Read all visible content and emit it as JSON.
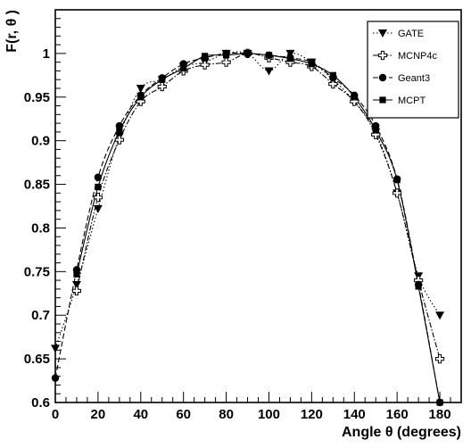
{
  "chart_data": {
    "type": "scatter",
    "xlabel": "Angle θ  (degrees)",
    "ylabel": "F(r, θ )",
    "xlim": [
      0,
      190
    ],
    "ylim": [
      0.6,
      1.05
    ],
    "x_ticks": [
      "0",
      "20",
      "40",
      "60",
      "80",
      "100",
      "120",
      "140",
      "160",
      "180"
    ],
    "y_ticks": [
      "0.6",
      "0.65",
      "0.7",
      "0.75",
      "0.8",
      "0.85",
      "0.9",
      "0.95",
      "1"
    ],
    "grid": false,
    "legend": "top-right",
    "series": [
      {
        "name": "GATE",
        "marker": "triangle-down",
        "line": "dotted",
        "points": [
          [
            0,
            0.662
          ],
          [
            10,
            0.735
          ],
          [
            20,
            0.822
          ],
          [
            30,
            0.905
          ],
          [
            40,
            0.96
          ],
          [
            50,
            0.97
          ],
          [
            60,
            0.985
          ],
          [
            70,
            0.99
          ],
          [
            80,
            1.0
          ],
          [
            90,
            1.0
          ],
          [
            100,
            0.98
          ],
          [
            110,
            1.0
          ],
          [
            120,
            0.99
          ],
          [
            130,
            0.97
          ],
          [
            140,
            0.945
          ],
          [
            150,
            0.91
          ],
          [
            160,
            0.84
          ],
          [
            170,
            0.745
          ],
          [
            180,
            0.7
          ]
        ]
      },
      {
        "name": "MCNP4c",
        "marker": "open-cross",
        "line": "dash-dot",
        "points": [
          [
            10,
            0.728
          ],
          [
            20,
            0.835
          ],
          [
            30,
            0.901
          ],
          [
            40,
            0.945
          ],
          [
            50,
            0.962
          ],
          [
            60,
            0.98
          ],
          [
            70,
            0.987
          ],
          [
            80,
            0.99
          ],
          [
            90,
            1.0
          ],
          [
            100,
            0.995
          ],
          [
            110,
            0.99
          ],
          [
            120,
            0.985
          ],
          [
            130,
            0.965
          ],
          [
            140,
            0.945
          ],
          [
            150,
            0.907
          ],
          [
            160,
            0.84
          ],
          [
            170,
            0.74
          ],
          [
            180,
            0.65
          ]
        ]
      },
      {
        "name": "Geant3",
        "marker": "circle",
        "line": "dashed",
        "points": [
          [
            0,
            0.628
          ],
          [
            10,
            0.752
          ],
          [
            20,
            0.858
          ],
          [
            30,
            0.917
          ],
          [
            40,
            0.952
          ],
          [
            50,
            0.972
          ],
          [
            60,
            0.988
          ],
          [
            70,
            0.995
          ],
          [
            80,
            1.0
          ],
          [
            90,
            1.0
          ],
          [
            100,
            0.998
          ],
          [
            110,
            0.995
          ],
          [
            120,
            0.99
          ],
          [
            130,
            0.972
          ],
          [
            140,
            0.952
          ],
          [
            150,
            0.917
          ],
          [
            160,
            0.856
          ],
          [
            170,
            0.735
          ],
          [
            180,
            0.6
          ]
        ]
      },
      {
        "name": "MCPT",
        "marker": "square",
        "line": "solid",
        "points": [
          [
            10,
            0.747
          ],
          [
            20,
            0.847
          ],
          [
            30,
            0.911
          ],
          [
            40,
            0.95
          ],
          [
            50,
            0.97
          ],
          [
            60,
            0.983
          ],
          [
            70,
            0.997
          ],
          [
            80,
            0.998
          ],
          [
            90,
            1.0
          ],
          [
            100,
            0.998
          ],
          [
            110,
            0.994
          ],
          [
            120,
            0.988
          ],
          [
            130,
            0.975
          ],
          [
            140,
            0.95
          ],
          [
            150,
            0.912
          ],
          [
            160,
            0.855
          ],
          [
            170,
            0.733
          ],
          [
            180,
            0.6
          ]
        ]
      }
    ]
  }
}
